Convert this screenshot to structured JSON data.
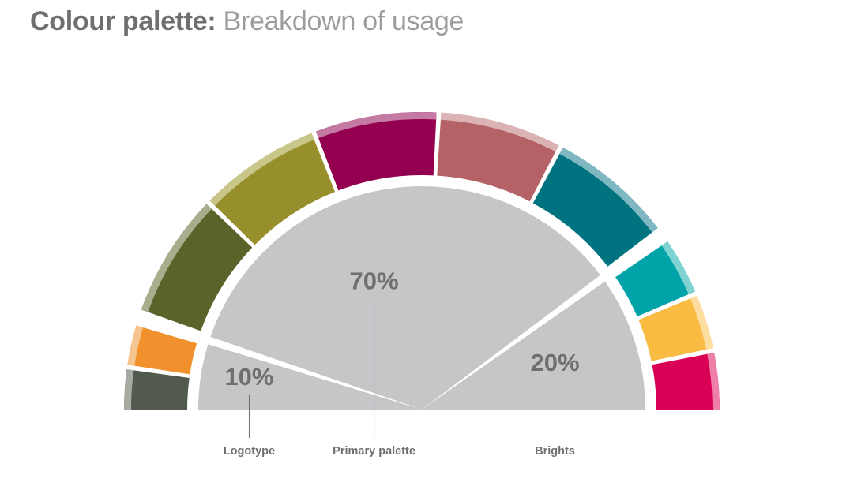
{
  "title": {
    "bold": "Colour palette:",
    "light": "Breakdown of usage"
  },
  "chart_data": {
    "type": "pie",
    "title": "Colour palette: Breakdown of usage",
    "inner_slices": [
      {
        "name": "Logotype",
        "value": 10,
        "label": "10%"
      },
      {
        "name": "Primary palette",
        "value": 70,
        "label": "70%"
      },
      {
        "name": "Brights",
        "value": 20,
        "label": "20%"
      }
    ],
    "outer_ring": [
      {
        "group": "Logotype",
        "color": "#525a4f",
        "highlight": "#a5aaa3"
      },
      {
        "group": "Logotype",
        "color": "#f0912d",
        "highlight": "#f7c590"
      },
      {
        "group": "Primary palette",
        "color": "#5b632b",
        "highlight": "#a9ad8d"
      },
      {
        "group": "Primary palette",
        "color": "#978f2b",
        "highlight": "#c9c68a"
      },
      {
        "group": "Primary palette",
        "color": "#93004f",
        "highlight": "#c47aa3"
      },
      {
        "group": "Primary palette",
        "color": "#b56266",
        "highlight": "#dcb3b5"
      },
      {
        "group": "Primary palette",
        "color": "#007381",
        "highlight": "#7fb8c0"
      },
      {
        "group": "Brights",
        "color": "#00a4a8",
        "highlight": "#7fd4d3"
      },
      {
        "group": "Brights",
        "color": "#fabb43",
        "highlight": "#fddda0"
      },
      {
        "group": "Brights",
        "color": "#da0055",
        "highlight": "#ee7fa9"
      }
    ],
    "inner_color": "#c5c6c8"
  }
}
